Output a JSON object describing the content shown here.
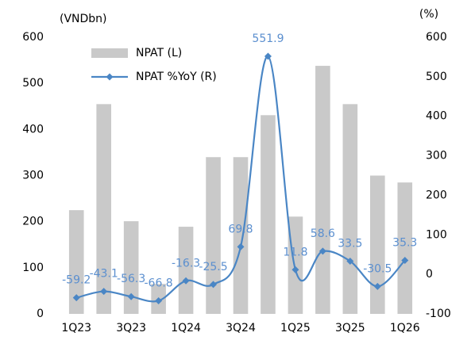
{
  "chart_data": {
    "type": "combo",
    "y_label": "(VNDbn)",
    "y2_label": "(%)",
    "categories": [
      "1Q23",
      null,
      "3Q23",
      null,
      "1Q24",
      null,
      "3Q24",
      null,
      "1Q25",
      null,
      "3Q25",
      null,
      "1Q26"
    ],
    "series": [
      {
        "name": "NPAT (L)",
        "type": "bar",
        "color": "#c9c9c9",
        "values": [
          225,
          455,
          201,
          65,
          189,
          340,
          340,
          431,
          211,
          538,
          455,
          300,
          285
        ]
      },
      {
        "name": "NPAT %YoY (R)",
        "type": "line",
        "axis": "y2",
        "color": "#4a86c5",
        "values": [
          -59.2,
          -43.1,
          -56.3,
          -66.8,
          -16.3,
          -25.5,
          69.8,
          551.9,
          11.8,
          58.6,
          33.5,
          -30.5,
          35.3
        ]
      }
    ],
    "ylim": [
      0,
      600
    ],
    "yticks": [
      0,
      100,
      200,
      300,
      400,
      500,
      600
    ],
    "y2lim": [
      -100,
      600
    ],
    "y2ticks": [
      -100,
      0,
      100,
      200,
      300,
      400,
      500,
      600
    ],
    "grid": false,
    "legend": "upper left"
  }
}
